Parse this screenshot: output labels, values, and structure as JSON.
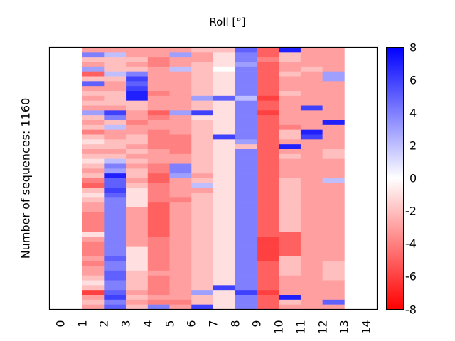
{
  "chart_data": {
    "type": "heatmap",
    "title": "Roll [°]",
    "xlabel": "",
    "ylabel": "Number of sequences: 1160",
    "n_rows": 1160,
    "x_tick_labels": [
      "0",
      "1",
      "2",
      "3",
      "4",
      "5",
      "6",
      "7",
      "8",
      "9",
      "10",
      "11",
      "12",
      "13",
      "14"
    ],
    "x_range": [
      0,
      14
    ],
    "colormap": "bwr",
    "colorbar": {
      "range": [
        -8,
        8
      ],
      "tick_labels": [
        "8",
        "6",
        "4",
        "2",
        "0",
        "-2",
        "-4",
        "-6",
        "-8"
      ],
      "tick_values": [
        8,
        6,
        4,
        2,
        0,
        -2,
        -4,
        -6,
        -8
      ],
      "low_color": "#ff0000",
      "mid_color": "#ffffff",
      "high_color": "#0000ff"
    },
    "columns": [
      {
        "position": 1,
        "segments": [
          -3,
          4,
          -2,
          -3,
          3,
          -5,
          -2,
          5,
          -3,
          -2,
          -3,
          -2,
          -3,
          3,
          -2,
          -3,
          -2,
          -4,
          -2,
          -1,
          -2,
          -3,
          -2,
          -1,
          -2,
          -3,
          -2,
          -4,
          -5,
          -2,
          -1,
          -2,
          -3,
          -3,
          -4,
          -4,
          -4,
          -4,
          -1,
          -3,
          -4,
          -4,
          -4,
          -3,
          -4,
          -3,
          -3,
          -2,
          -1,
          -2,
          -6,
          -3,
          -2,
          -3
        ]
      },
      {
        "position": 2,
        "segments": [
          -3,
          2,
          -2,
          -2,
          -2,
          2,
          -2,
          -3,
          -3,
          -2,
          -2,
          -2,
          -3,
          6,
          4,
          -2,
          2,
          -3,
          -3,
          -2,
          -2,
          -3,
          -2,
          2,
          4,
          3,
          7,
          5,
          5,
          6,
          5,
          4,
          4,
          4,
          4,
          4,
          4,
          4,
          4,
          4,
          4,
          4,
          4,
          5,
          4,
          4,
          5,
          5,
          4,
          4,
          5,
          6,
          4,
          5
        ]
      },
      {
        "position": 3,
        "segments": [
          -3,
          -3,
          -2,
          -3,
          -2,
          4,
          6,
          5,
          6,
          7,
          7,
          -2,
          -2,
          -3,
          -3,
          -4,
          -3,
          -3,
          -2,
          -2,
          -3,
          -2,
          -3,
          -2,
          -3,
          -2,
          -2,
          -3,
          -2,
          -1,
          -1,
          -1,
          -1,
          -3,
          -3,
          -3,
          -3,
          -3,
          -3,
          -3,
          -3,
          -1,
          -1,
          -1,
          -1,
          -1,
          -2,
          -2,
          -2,
          -2,
          -3,
          -2,
          -3,
          -2
        ]
      },
      {
        "position": 4,
        "segments": [
          -3,
          -3,
          -4,
          -4,
          -3,
          -3,
          -3,
          -3,
          -3,
          -4,
          -3,
          -3,
          -3,
          -5,
          -4,
          -3,
          -3,
          -4,
          -4,
          -4,
          -4,
          -3,
          -3,
          -3,
          -4,
          -4,
          -5,
          -5,
          -4,
          -4,
          -4,
          -4,
          -5,
          -5,
          -5,
          -5,
          -5,
          -5,
          -5,
          -4,
          -4,
          -4,
          -4,
          -4,
          -4,
          -4,
          -3,
          -4,
          -4,
          -4,
          -4,
          -3,
          -4,
          4
        ]
      },
      {
        "position": 5,
        "segments": [
          -3,
          3,
          -3,
          -3,
          2,
          -3,
          -3,
          -3,
          -3,
          -3,
          -3,
          -3,
          -3,
          3,
          -3,
          -3,
          -3,
          -3,
          -4,
          -4,
          -4,
          -4,
          -3,
          -3,
          4,
          4,
          3,
          -3,
          -3,
          -3,
          -3,
          -4,
          -3,
          -3,
          -3,
          -3,
          -3,
          -3,
          -3,
          -3,
          -3,
          -3,
          -3,
          -3,
          -3,
          -3,
          -3,
          -3,
          -3,
          -3,
          -3,
          -3,
          -4,
          -3
        ]
      },
      {
        "position": 6,
        "segments": [
          -2,
          -3,
          -3,
          -2,
          -2,
          -2,
          -2,
          -2,
          -2,
          -2,
          3,
          -2,
          -2,
          6,
          -1,
          -2,
          -2,
          -2,
          -2,
          -2,
          -2,
          -2,
          -2,
          -2,
          -2,
          -2,
          -3,
          -2,
          2,
          -3,
          -2,
          -2,
          -2,
          -2,
          -2,
          -2,
          -2,
          -2,
          -2,
          -2,
          -2,
          -2,
          -2,
          -2,
          -2,
          -2,
          -2,
          -2,
          -2,
          -2,
          3,
          -2,
          -2,
          6
        ]
      },
      {
        "position": 7,
        "segments": [
          -2,
          -1,
          -1,
          -1,
          0,
          -1,
          -1,
          -1,
          -1,
          -1,
          5,
          -1,
          -1,
          -1,
          -1,
          -1,
          -1,
          -1,
          6,
          -1,
          -1,
          -1,
          -1,
          -1,
          -1,
          -1,
          -1,
          -1,
          -1,
          -1,
          -1,
          -1,
          -1,
          -1,
          -1,
          -1,
          -1,
          -1,
          -1,
          -1,
          -1,
          -1,
          -1,
          -1,
          -1,
          -1,
          -1,
          -1,
          -1,
          6,
          -1,
          -1,
          -1,
          -1
        ]
      },
      {
        "position": 8,
        "segments": [
          5,
          4,
          4,
          3,
          4,
          4,
          4,
          4,
          4,
          4,
          2,
          4,
          4,
          4,
          4,
          4,
          4,
          4,
          4,
          3,
          -2,
          4,
          4,
          4,
          4,
          4,
          4,
          4,
          4,
          4,
          4,
          4,
          4,
          4,
          4,
          4,
          4,
          4,
          4,
          4,
          4,
          4,
          4,
          4,
          4,
          4,
          4,
          4,
          4,
          4,
          6,
          4,
          4,
          4
        ]
      },
      {
        "position": 9,
        "segments": [
          -5,
          -5,
          -4,
          -5,
          -5,
          -5,
          -5,
          -5,
          -5,
          -5,
          -6,
          -5,
          -5,
          -6,
          -5,
          -5,
          -5,
          -5,
          -5,
          -5,
          -5,
          -5,
          -5,
          -5,
          -5,
          -5,
          -5,
          -5,
          -5,
          -5,
          -5,
          -5,
          -5,
          -5,
          -5,
          -5,
          -5,
          -5,
          -5,
          -6,
          -6,
          -6,
          -6,
          -6,
          -5,
          -5,
          -5,
          -5,
          -5,
          -5,
          -6,
          -5,
          -5,
          -5
        ]
      },
      {
        "position": 10,
        "segments": [
          7,
          -2,
          -2,
          -3,
          -3,
          -2,
          -3,
          -3,
          -3,
          -2,
          -3,
          -3,
          -3,
          -3,
          -3,
          -3,
          -4,
          -2,
          -2,
          -3,
          7,
          -3,
          -2,
          -3,
          -3,
          -3,
          -3,
          -2,
          -2,
          -2,
          -2,
          -2,
          -2,
          -2,
          -2,
          -2,
          -2,
          -2,
          -5,
          -5,
          -5,
          -5,
          -5,
          -2,
          -2,
          -2,
          -2,
          -3,
          -3,
          -3,
          -3,
          7,
          -2,
          -3
        ]
      },
      {
        "position": 11,
        "segments": [
          -3,
          -3,
          -3,
          -3,
          -2,
          -3,
          -3,
          -3,
          -3,
          -3,
          -3,
          -3,
          6,
          -3,
          -3,
          -3,
          -3,
          7,
          6,
          -3,
          -3,
          -3,
          -3,
          -3,
          -3,
          -3,
          -3,
          -3,
          -3,
          -3,
          -3,
          -3,
          -3,
          -3,
          -3,
          -3,
          -3,
          -3,
          -3,
          -3,
          -3,
          -3,
          -3,
          -3,
          -3,
          -3,
          -3,
          -3,
          -3,
          -3,
          -3,
          -3,
          -3,
          -3
        ]
      },
      {
        "position": 12,
        "segments": [
          -3,
          -3,
          -3,
          -3,
          -3,
          3,
          3,
          -3,
          -3,
          -3,
          -3,
          -3,
          -3,
          -3,
          -3,
          7,
          -3,
          -3,
          -3,
          -3,
          -3,
          -2,
          -2,
          -3,
          -3,
          -3,
          -3,
          2,
          -3,
          -3,
          -3,
          -3,
          -3,
          -3,
          -3,
          -3,
          -3,
          -3,
          -3,
          -3,
          -3,
          -3,
          -3,
          -3,
          -2,
          -2,
          -2,
          -2,
          -3,
          -3,
          -3,
          -3,
          5,
          -3
        ]
      }
    ]
  }
}
